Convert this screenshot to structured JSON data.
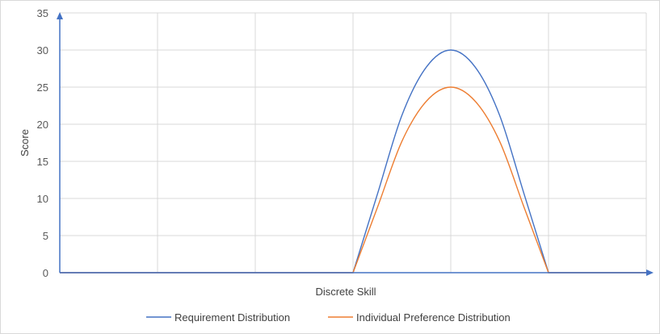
{
  "chart_data": {
    "type": "line",
    "title": "",
    "xlabel": "Discrete Skill",
    "ylabel": "Score",
    "ylim": [
      0,
      35
    ],
    "xlim": [
      0,
      6
    ],
    "y_ticks": [
      "0",
      "5",
      "10",
      "15",
      "20",
      "25",
      "30",
      "35"
    ],
    "x_ticks": [],
    "grid": true,
    "legend_position": "bottom",
    "series": [
      {
        "name": "Requirement Distribution",
        "color": "#4472c4",
        "points": [
          [
            0,
            0
          ],
          [
            1,
            0
          ],
          [
            2,
            0
          ],
          [
            3,
            0
          ],
          [
            3.25,
            10.6
          ],
          [
            3.5,
            21.2
          ],
          [
            3.75,
            27.7
          ],
          [
            4,
            30
          ],
          [
            4.25,
            27.7
          ],
          [
            4.5,
            21.2
          ],
          [
            4.75,
            10.6
          ],
          [
            5,
            0
          ],
          [
            6,
            0
          ]
        ]
      },
      {
        "name": "Individual Preference Distribution",
        "color": "#ed7d31",
        "points": [
          [
            0,
            0
          ],
          [
            1,
            0
          ],
          [
            2,
            0
          ],
          [
            3,
            0
          ],
          [
            3.25,
            8.8
          ],
          [
            3.5,
            17.7
          ],
          [
            3.75,
            23.1
          ],
          [
            4,
            25
          ],
          [
            4.25,
            23.1
          ],
          [
            4.5,
            17.7
          ],
          [
            4.75,
            8.8
          ],
          [
            5,
            0
          ],
          [
            6,
            0
          ]
        ]
      }
    ],
    "axis_color": "#4472c4",
    "grid_color": "#d9d9d9"
  }
}
